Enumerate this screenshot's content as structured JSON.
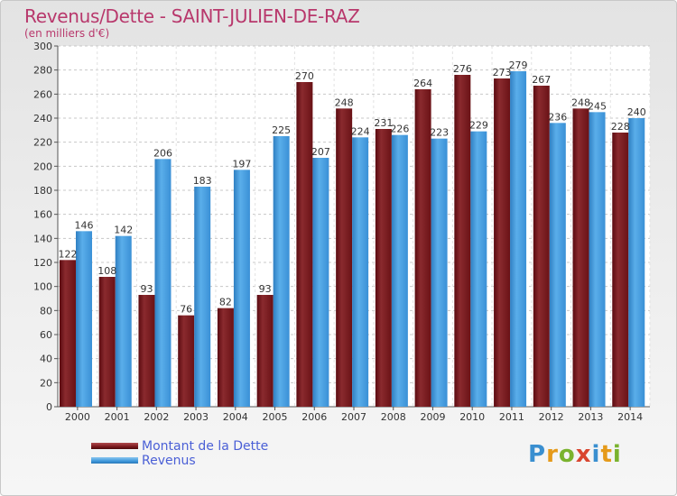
{
  "title": "Revenus/Dette - SAINT-JULIEN-DE-RAZ",
  "subtitle": "(en milliers d'€)",
  "colors": {
    "title": "#b8386c",
    "dette": "#7a1a1e",
    "revenus": "#3f98dc",
    "legend_text": "#4a5fd6"
  },
  "legend": {
    "dette_label": "Montant de la Dette",
    "revenus_label": "Revenus"
  },
  "logo": {
    "text": "Proxiti",
    "letters": [
      "P",
      "r",
      "o",
      "x",
      "i",
      "t",
      "i"
    ]
  },
  "chart_data": {
    "type": "bar",
    "title": "Revenus/Dette - SAINT-JULIEN-DE-RAZ",
    "ylabel": "(en milliers d'€)",
    "xlabel": "",
    "categories": [
      "2000",
      "2001",
      "2002",
      "2003",
      "2004",
      "2005",
      "2006",
      "2007",
      "2008",
      "2009",
      "2010",
      "2011",
      "2012",
      "2013",
      "2014"
    ],
    "series": [
      {
        "name": "Montant de la Dette",
        "values": [
          122,
          108,
          93,
          76,
          82,
          93,
          270,
          248,
          231,
          264,
          276,
          273,
          267,
          248,
          228
        ]
      },
      {
        "name": "Revenus",
        "values": [
          146,
          142,
          206,
          183,
          197,
          225,
          207,
          224,
          226,
          223,
          229,
          279,
          236,
          245,
          240
        ]
      }
    ],
    "ylim": [
      0,
      300
    ],
    "yticks": [
      0,
      20,
      40,
      60,
      80,
      100,
      120,
      140,
      160,
      180,
      200,
      220,
      240,
      260,
      280,
      300
    ],
    "grid": true,
    "legend_position": "bottom-left"
  }
}
